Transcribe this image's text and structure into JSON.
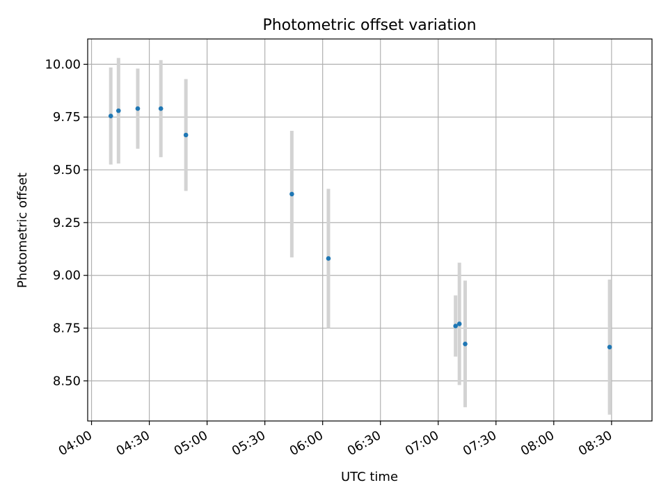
{
  "chart_data": {
    "type": "scatter",
    "title": "Photometric offset variation",
    "xlabel": "UTC time",
    "ylabel": "Photometric offset",
    "x_axis": "time",
    "xlim": [
      "03:58",
      "08:51"
    ],
    "ylim": [
      8.31,
      10.12
    ],
    "x_ticks": [
      "04:00",
      "04:30",
      "05:00",
      "05:30",
      "06:00",
      "06:30",
      "07:00",
      "07:30",
      "08:00",
      "08:30"
    ],
    "y_ticks": [
      "8.50",
      "8.75",
      "9.00",
      "9.25",
      "9.50",
      "9.75",
      "10.00"
    ],
    "grid": true,
    "point_color": "#1f77b4",
    "errorbar_color": "#d3d3d3",
    "series": [
      {
        "points": [
          {
            "x": "04:10",
            "y": 9.755,
            "err": 0.23
          },
          {
            "x": "04:14",
            "y": 9.78,
            "err": 0.25
          },
          {
            "x": "04:24",
            "y": 9.79,
            "err": 0.19
          },
          {
            "x": "04:36",
            "y": 9.79,
            "err": 0.23
          },
          {
            "x": "04:49",
            "y": 9.665,
            "err": 0.265
          },
          {
            "x": "05:44",
            "y": 9.385,
            "err": 0.3
          },
          {
            "x": "06:03",
            "y": 9.08,
            "err": 0.33
          },
          {
            "x": "07:09",
            "y": 8.76,
            "err": 0.145
          },
          {
            "x": "07:11",
            "y": 8.77,
            "err": 0.29
          },
          {
            "x": "07:14",
            "y": 8.675,
            "err": 0.3
          },
          {
            "x": "08:29",
            "y": 8.66,
            "err": 0.32
          }
        ]
      }
    ]
  }
}
